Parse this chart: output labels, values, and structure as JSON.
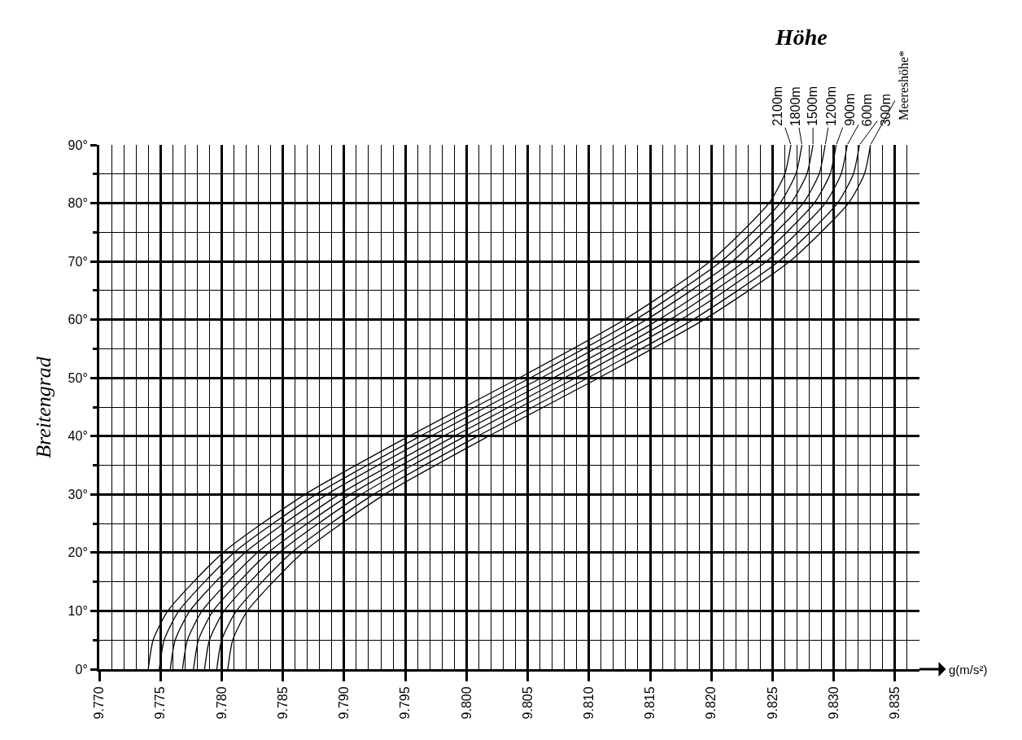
{
  "chart_data": {
    "type": "line",
    "legend_title": "Höhe",
    "xlabel": "g(m/s²)",
    "ylabel": "Breitengrad",
    "series": [
      {
        "name": "2100m",
        "color": "#000000",
        "x": [
          9.774,
          9.7744,
          9.7756,
          9.7801,
          9.7868,
          9.7953,
          9.8043,
          9.8129,
          9.8199,
          9.8247,
          9.826,
          9.8265
        ],
        "values": [
          0,
          5,
          10,
          20,
          30,
          40,
          50,
          60,
          70,
          80,
          85,
          90
        ]
      },
      {
        "name": "1800m",
        "color": "#000000",
        "x": [
          9.7749,
          9.7753,
          9.7765,
          9.781,
          9.7877,
          9.7962,
          9.8052,
          9.8138,
          9.8208,
          9.8256,
          9.8269,
          9.8274
        ],
        "values": [
          0,
          5,
          10,
          20,
          30,
          40,
          50,
          60,
          70,
          80,
          85,
          90
        ]
      },
      {
        "name": "1500m",
        "color": "#000000",
        "x": [
          9.7758,
          9.7762,
          9.7774,
          9.7819,
          9.7886,
          9.7971,
          9.8061,
          9.8147,
          9.8217,
          9.8265,
          9.8278,
          9.8283
        ],
        "values": [
          0,
          5,
          10,
          20,
          30,
          40,
          50,
          60,
          70,
          80,
          85,
          90
        ]
      },
      {
        "name": "1200m",
        "color": "#000000",
        "x": [
          9.7768,
          9.7772,
          9.7784,
          9.7829,
          9.7896,
          9.7981,
          9.8071,
          9.8157,
          9.8227,
          9.8275,
          9.8288,
          9.8293
        ],
        "values": [
          0,
          5,
          10,
          20,
          30,
          40,
          50,
          60,
          70,
          80,
          85,
          90
        ]
      },
      {
        "name": "900m",
        "color": "#000000",
        "x": [
          9.7777,
          9.7781,
          9.7793,
          9.7838,
          9.7905,
          9.799,
          9.808,
          9.8166,
          9.8236,
          9.8284,
          9.8297,
          9.8302
        ],
        "values": [
          0,
          5,
          10,
          20,
          30,
          40,
          50,
          60,
          70,
          80,
          85,
          90
        ]
      },
      {
        "name": "600m",
        "color": "#000000",
        "x": [
          9.7786,
          9.779,
          9.7802,
          9.7847,
          9.7914,
          9.7999,
          9.8089,
          9.8175,
          9.8245,
          9.8293,
          9.8306,
          9.8311
        ],
        "values": [
          0,
          5,
          10,
          20,
          30,
          40,
          50,
          60,
          70,
          80,
          85,
          90
        ]
      },
      {
        "name": "300m",
        "color": "#000000",
        "x": [
          9.7796,
          9.78,
          9.7812,
          9.7857,
          9.7924,
          9.8009,
          9.8099,
          9.8185,
          9.8255,
          9.8303,
          9.8316,
          9.8321
        ],
        "values": [
          0,
          5,
          10,
          20,
          30,
          40,
          50,
          60,
          70,
          80,
          85,
          90
        ]
      },
      {
        "name": "Meereshöhe*",
        "color": "#000000",
        "x": [
          9.7805,
          9.7809,
          9.7821,
          9.7866,
          9.7933,
          9.8018,
          9.8108,
          9.8194,
          9.8264,
          9.8312,
          9.8325,
          9.833
        ],
        "values": [
          0,
          5,
          10,
          20,
          30,
          40,
          50,
          60,
          70,
          80,
          85,
          90
        ]
      }
    ],
    "xlim": [
      9.77,
      9.837
    ],
    "ylim": [
      0,
      90
    ],
    "xticks": [
      {
        "value": 9.77,
        "label": "9.770"
      },
      {
        "value": 9.775,
        "label": "9.775"
      },
      {
        "value": 9.78,
        "label": "9.780"
      },
      {
        "value": 9.785,
        "label": "9.785"
      },
      {
        "value": 9.79,
        "label": "9.790"
      },
      {
        "value": 9.795,
        "label": "9.795"
      },
      {
        "value": 9.8,
        "label": "9.800"
      },
      {
        "value": 9.805,
        "label": "9.805"
      },
      {
        "value": 9.81,
        "label": "9.810"
      },
      {
        "value": 9.815,
        "label": "9.815"
      },
      {
        "value": 9.82,
        "label": "9.820"
      },
      {
        "value": 9.825,
        "label": "9.825"
      },
      {
        "value": 9.83,
        "label": "9.830"
      },
      {
        "value": 9.835,
        "label": "9.835"
      }
    ],
    "yticks": [
      {
        "value": 0,
        "label": "0°"
      },
      {
        "value": 10,
        "label": "10°"
      },
      {
        "value": 20,
        "label": "20°"
      },
      {
        "value": 30,
        "label": "30°"
      },
      {
        "value": 40,
        "label": "40°"
      },
      {
        "value": 50,
        "label": "50°"
      },
      {
        "value": 60,
        "label": "60°"
      },
      {
        "value": 70,
        "label": "70°"
      },
      {
        "value": 80,
        "label": "80°"
      },
      {
        "value": 90,
        "label": "90°"
      }
    ],
    "grid": true,
    "legend": false,
    "marker": "none",
    "line_style": "solid"
  }
}
